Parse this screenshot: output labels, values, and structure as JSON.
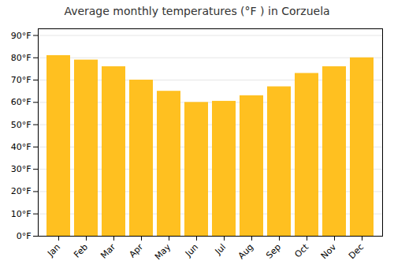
{
  "chart_data": {
    "type": "bar",
    "title": "Average monthly temperatures (°F ) in Corzuela",
    "categories": [
      "Jan",
      "Feb",
      "Mar",
      "Apr",
      "May",
      "Jun",
      "Jul",
      "Aug",
      "Sep",
      "Oct",
      "Nov",
      "Dec"
    ],
    "values": [
      81,
      79,
      76,
      70,
      65,
      60,
      60.5,
      63,
      67,
      73,
      76,
      80
    ],
    "color": "#FFC020",
    "ylim": [
      0,
      93
    ],
    "yticks": [
      {
        "value": 0,
        "label": "0°F"
      },
      {
        "value": 10,
        "label": "10°F"
      },
      {
        "value": 20,
        "label": "20°F"
      },
      {
        "value": 30,
        "label": "30°F"
      },
      {
        "value": 40,
        "label": "40°F"
      },
      {
        "value": 50,
        "label": "50°F"
      },
      {
        "value": 60,
        "label": "60°F"
      },
      {
        "value": 70,
        "label": "70°F"
      },
      {
        "value": 80,
        "label": "80°F"
      },
      {
        "value": 90,
        "label": "90°F"
      }
    ],
    "grid": true
  }
}
